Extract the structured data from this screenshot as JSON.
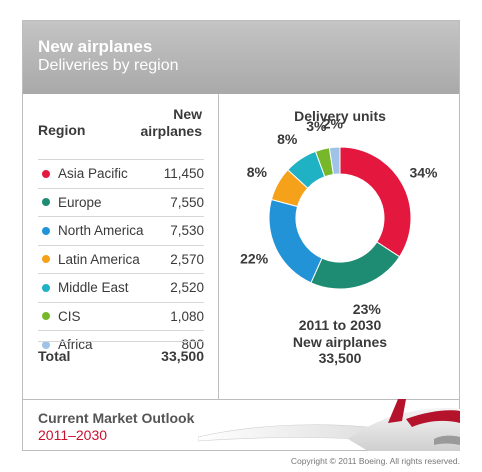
{
  "header": {
    "title": "New airplanes",
    "subtitle": "Deliveries by region"
  },
  "table": {
    "col_region": "Region",
    "col_new_line1": "New",
    "col_new_line2": "airplanes",
    "rows": [
      {
        "label": "Asia Pacific",
        "value": "11,450",
        "color": "#e4173e"
      },
      {
        "label": "Europe",
        "value": "7,550",
        "color": "#1e8c73"
      },
      {
        "label": "North America",
        "value": "7,530",
        "color": "#2393d8"
      },
      {
        "label": "Latin America",
        "value": "2,570",
        "color": "#f5a11a"
      },
      {
        "label": "Middle East",
        "value": "2,520",
        "color": "#1fb1c4"
      },
      {
        "label": "CIS",
        "value": "1,080",
        "color": "#77b82a"
      },
      {
        "label": "Africa",
        "value": "800",
        "color": "#9fc3e8"
      }
    ],
    "total_label": "Total",
    "total_value": "33,500"
  },
  "chart_data": {
    "type": "pie",
    "title": "Delivery units",
    "categories": [
      "Asia Pacific",
      "Europe",
      "North America",
      "Latin America",
      "Middle East",
      "CIS",
      "Africa"
    ],
    "values": [
      11450,
      7550,
      7530,
      2570,
      2520,
      1080,
      800
    ],
    "percent_labels": [
      "34%",
      "23%",
      "22%",
      "8%",
      "8%",
      "3%",
      "2%"
    ],
    "colors": [
      "#e4173e",
      "#1e8c73",
      "#2393d8",
      "#f5a11a",
      "#1fb1c4",
      "#77b82a",
      "#9fc3e8"
    ],
    "center_note": [
      "2011 to 2030",
      "New airplanes",
      "33,500"
    ]
  },
  "footer": {
    "title": "Current Market Outlook",
    "years": "2011–2030",
    "copyright": "Copyright © 2011 Boeing. All rights reserved."
  }
}
